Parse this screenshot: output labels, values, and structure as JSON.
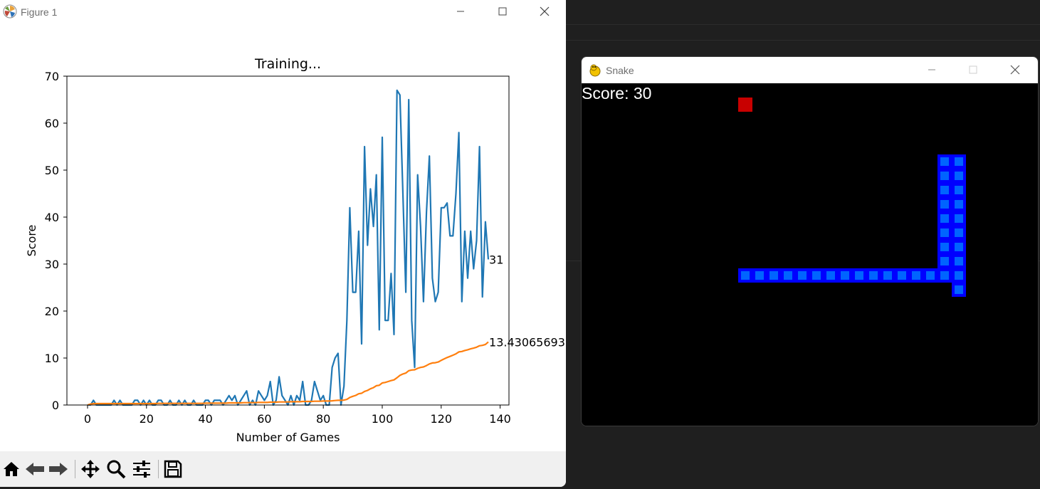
{
  "figure_window": {
    "title": "Figure 1",
    "controls": [
      "minimize",
      "maximize",
      "close"
    ],
    "toolbar": [
      "home-icon",
      "back-icon",
      "forward-icon",
      "pan-icon",
      "zoom-icon",
      "configure-subplots-icon",
      "save-icon"
    ]
  },
  "chart_data": {
    "type": "line",
    "title": "Training...",
    "xlabel": "Number of Games",
    "ylabel": "Score",
    "xlim": [
      -7,
      143
    ],
    "ylim": [
      0,
      70
    ],
    "xticks": [
      0,
      20,
      40,
      60,
      80,
      100,
      120,
      140
    ],
    "yticks": [
      0,
      10,
      20,
      30,
      40,
      50,
      60,
      70
    ],
    "grid": false,
    "series": [
      {
        "color": "#1f77b4",
        "values": [
          0,
          0,
          1,
          0,
          0,
          0,
          0,
          0,
          0,
          1,
          0,
          1,
          0,
          0,
          0,
          0,
          1,
          1,
          0,
          1,
          0,
          1,
          0,
          0,
          1,
          1,
          0,
          0,
          1,
          0,
          0,
          1,
          0,
          1,
          0,
          0,
          1,
          0,
          0,
          0,
          1,
          1,
          0,
          1,
          1,
          1,
          0,
          1,
          2,
          1,
          2,
          0,
          1,
          2,
          3,
          0,
          1,
          0,
          3,
          2,
          1,
          2,
          5,
          0,
          1,
          6,
          2,
          1,
          0,
          2,
          0,
          2,
          1,
          5,
          0,
          0,
          1,
          5,
          3,
          1,
          2,
          0,
          0,
          8,
          10,
          11,
          0,
          4,
          18,
          42,
          24,
          24,
          37,
          13,
          55,
          34,
          46,
          38,
          49,
          16,
          57,
          18,
          18,
          28,
          15,
          67,
          66,
          45,
          24,
          65,
          18,
          8,
          49,
          38,
          22,
          41,
          53,
          27,
          22,
          24,
          42,
          42,
          43,
          36,
          36,
          45,
          58,
          22,
          37,
          27,
          37,
          29,
          35,
          55,
          23,
          39,
          31
        ],
        "end_label": "31"
      },
      {
        "color": "#ff7f0e",
        "values": [
          0,
          0.2,
          0.3,
          0.3,
          0.3,
          0.3,
          0.3,
          0.3,
          0.3,
          0.3,
          0.3,
          0.3,
          0.3,
          0.3,
          0.3,
          0.3,
          0.3,
          0.3,
          0.3,
          0.3,
          0.3,
          0.3,
          0.3,
          0.3,
          0.35,
          0.35,
          0.35,
          0.35,
          0.35,
          0.35,
          0.35,
          0.35,
          0.35,
          0.35,
          0.35,
          0.35,
          0.35,
          0.35,
          0.35,
          0.35,
          0.4,
          0.4,
          0.4,
          0.4,
          0.4,
          0.4,
          0.4,
          0.4,
          0.45,
          0.45,
          0.45,
          0.45,
          0.45,
          0.5,
          0.5,
          0.5,
          0.5,
          0.5,
          0.55,
          0.55,
          0.55,
          0.55,
          0.6,
          0.6,
          0.6,
          0.65,
          0.65,
          0.65,
          0.65,
          0.7,
          0.7,
          0.7,
          0.7,
          0.75,
          0.75,
          0.75,
          0.75,
          0.8,
          0.8,
          0.8,
          0.85,
          0.85,
          0.85,
          0.9,
          0.95,
          1.0,
          1.0,
          1.05,
          1.2,
          1.6,
          1.85,
          2.05,
          2.4,
          2.5,
          2.9,
          3.1,
          3.45,
          3.7,
          4.1,
          4.2,
          4.7,
          4.8,
          5.0,
          5.2,
          5.35,
          5.8,
          6.3,
          6.6,
          6.8,
          7.3,
          7.45,
          7.5,
          7.8,
          8.0,
          8.1,
          8.4,
          8.75,
          8.95,
          9.0,
          9.15,
          9.5,
          9.8,
          10.1,
          10.35,
          10.6,
          10.9,
          11.3,
          11.4,
          11.6,
          11.75,
          11.95,
          12.1,
          12.3,
          12.6,
          12.7,
          12.9,
          13.43065693
        ],
        "end_label": "13.43065693"
      }
    ]
  },
  "snake_window": {
    "title": "Snake",
    "controls": [
      "minimize",
      "maximize",
      "close"
    ],
    "score_text": "Score: 30",
    "food_color": "#c80000",
    "snake_color": "#0000ff",
    "snake_inner_color": "#0064ff"
  }
}
